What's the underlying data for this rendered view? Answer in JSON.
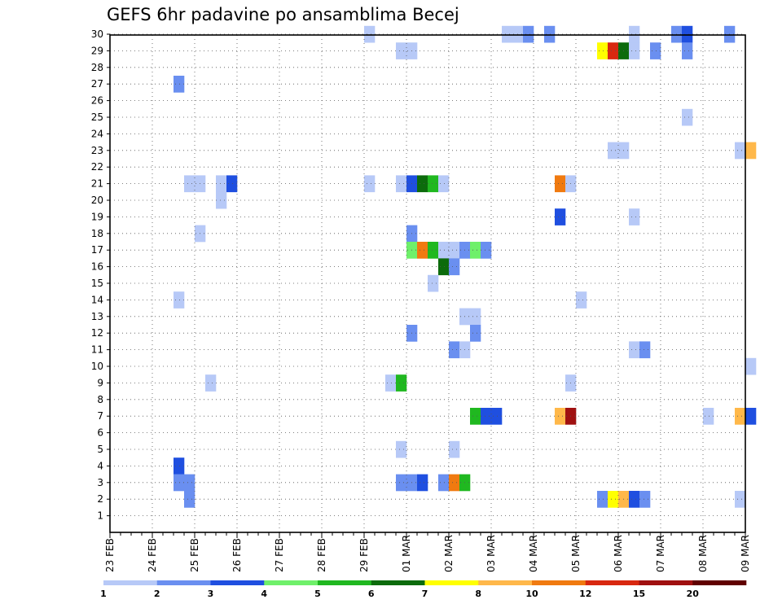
{
  "chart_data": {
    "type": "heatmap",
    "title": "GEFS 6hr padavine po ansamblima Becej",
    "xlabel": "",
    "ylabel": "",
    "members": [
      "1",
      "2",
      "3",
      "4",
      "5",
      "6",
      "7",
      "8",
      "9",
      "10",
      "11",
      "12",
      "13",
      "14",
      "15",
      "16",
      "17",
      "18",
      "19",
      "20",
      "21",
      "22",
      "23",
      "24",
      "25",
      "26",
      "27",
      "28",
      "29",
      "30"
    ],
    "x_tick_labels": [
      "23 FEB",
      "24 FEB",
      "25 FEB",
      "26 FEB",
      "27 FEB",
      "28 FEB",
      "29 FEB",
      "01 MAR",
      "02 MAR",
      "03 MAR",
      "04 MAR",
      "05 MAR",
      "06 MAR",
      "07 MAR",
      "08 MAR",
      "09 MAR"
    ],
    "grid": true,
    "colorbar": {
      "labels": [
        "1",
        "2",
        "3",
        "4",
        "5",
        "6",
        "7",
        "8",
        "10",
        "12",
        "15",
        "20"
      ],
      "colors": [
        "#b7c9f7",
        "#6a8ff0",
        "#1f4fe0",
        "#6ff06a",
        "#20b820",
        "#0c6b0c",
        "#ffff00",
        "#ffb84a",
        "#f07a10",
        "#d82810",
        "#a01010",
        "#600000"
      ]
    },
    "cells": [
      {
        "m": 30,
        "s": 24.5,
        "c": 0
      },
      {
        "m": 30,
        "s": 37.5,
        "c": 0
      },
      {
        "m": 30,
        "s": 38.5,
        "c": 0
      },
      {
        "m": 30,
        "s": 39.5,
        "c": 1
      },
      {
        "m": 30,
        "s": 41.5,
        "c": 1
      },
      {
        "m": 30,
        "s": 49.5,
        "c": 0
      },
      {
        "m": 30,
        "s": 53.5,
        "c": 1
      },
      {
        "m": 30,
        "s": 54.5,
        "c": 2
      },
      {
        "m": 30,
        "s": 58.5,
        "c": 1
      },
      {
        "m": 29,
        "s": 27.5,
        "c": 0
      },
      {
        "m": 29,
        "s": 28.5,
        "c": 0
      },
      {
        "m": 29,
        "s": 46.5,
        "c": 6
      },
      {
        "m": 29,
        "s": 47.5,
        "c": 9
      },
      {
        "m": 29,
        "s": 48.5,
        "c": 5
      },
      {
        "m": 29,
        "s": 49.5,
        "c": 0
      },
      {
        "m": 29,
        "s": 51.5,
        "c": 1
      },
      {
        "m": 29,
        "s": 54.5,
        "c": 1
      },
      {
        "m": 27,
        "s": 6.5,
        "c": 1
      },
      {
        "m": 25,
        "s": 54.5,
        "c": 0
      },
      {
        "m": 23,
        "s": 47.5,
        "c": 0
      },
      {
        "m": 23,
        "s": 48.5,
        "c": 0
      },
      {
        "m": 23,
        "s": 59.5,
        "c": 0
      },
      {
        "m": 23,
        "s": 60.5,
        "c": 7
      },
      {
        "m": 21,
        "s": 7.5,
        "c": 0
      },
      {
        "m": 21,
        "s": 8.5,
        "c": 0
      },
      {
        "m": 21,
        "s": 10.5,
        "c": 0
      },
      {
        "m": 21,
        "s": 11.5,
        "c": 2
      },
      {
        "m": 21,
        "s": 24.5,
        "c": 0
      },
      {
        "m": 21,
        "s": 27.5,
        "c": 0
      },
      {
        "m": 21,
        "s": 28.5,
        "c": 2
      },
      {
        "m": 21,
        "s": 29.5,
        "c": 5
      },
      {
        "m": 21,
        "s": 30.5,
        "c": 4
      },
      {
        "m": 21,
        "s": 31.5,
        "c": 0
      },
      {
        "m": 21,
        "s": 42.5,
        "c": 8
      },
      {
        "m": 21,
        "s": 43.5,
        "c": 0
      },
      {
        "m": 20,
        "s": 10.5,
        "c": 0
      },
      {
        "m": 19,
        "s": 42.5,
        "c": 2
      },
      {
        "m": 19,
        "s": 49.5,
        "c": 0
      },
      {
        "m": 18,
        "s": 8.5,
        "c": 0
      },
      {
        "m": 18,
        "s": 28.5,
        "c": 1
      },
      {
        "m": 17,
        "s": 28.5,
        "c": 3
      },
      {
        "m": 17,
        "s": 29.5,
        "c": 8
      },
      {
        "m": 17,
        "s": 30.5,
        "c": 4
      },
      {
        "m": 17,
        "s": 31.5,
        "c": 0
      },
      {
        "m": 17,
        "s": 32.5,
        "c": 0
      },
      {
        "m": 17,
        "s": 33.5,
        "c": 1
      },
      {
        "m": 17,
        "s": 34.5,
        "c": 3
      },
      {
        "m": 17,
        "s": 35.5,
        "c": 1
      },
      {
        "m": 16,
        "s": 31.5,
        "c": 5
      },
      {
        "m": 16,
        "s": 32.5,
        "c": 1
      },
      {
        "m": 15,
        "s": 30.5,
        "c": 0
      },
      {
        "m": 14,
        "s": 6.5,
        "c": 0
      },
      {
        "m": 14,
        "s": 44.5,
        "c": 0
      },
      {
        "m": 13,
        "s": 33.5,
        "c": 0
      },
      {
        "m": 13,
        "s": 34.5,
        "c": 0
      },
      {
        "m": 12,
        "s": 28.5,
        "c": 1
      },
      {
        "m": 12,
        "s": 34.5,
        "c": 1
      },
      {
        "m": 11,
        "s": 32.5,
        "c": 1
      },
      {
        "m": 11,
        "s": 33.5,
        "c": 0
      },
      {
        "m": 11,
        "s": 49.5,
        "c": 0
      },
      {
        "m": 11,
        "s": 50.5,
        "c": 1
      },
      {
        "m": 10,
        "s": 60.5,
        "c": 0
      },
      {
        "m": 9,
        "s": 9.5,
        "c": 0
      },
      {
        "m": 9,
        "s": 26.5,
        "c": 0
      },
      {
        "m": 9,
        "s": 27.5,
        "c": 4
      },
      {
        "m": 9,
        "s": 43.5,
        "c": 0
      },
      {
        "m": 7,
        "s": 34.5,
        "c": 4
      },
      {
        "m": 7,
        "s": 35.5,
        "c": 2
      },
      {
        "m": 7,
        "s": 36.5,
        "c": 2
      },
      {
        "m": 7,
        "s": 42.5,
        "c": 7
      },
      {
        "m": 7,
        "s": 43.5,
        "c": 10
      },
      {
        "m": 7,
        "s": 56.5,
        "c": 0
      },
      {
        "m": 7,
        "s": 59.5,
        "c": 7
      },
      {
        "m": 7,
        "s": 60.5,
        "c": 2
      },
      {
        "m": 5,
        "s": 27.5,
        "c": 0
      },
      {
        "m": 5,
        "s": 32.5,
        "c": 0
      },
      {
        "m": 4,
        "s": 6.5,
        "c": 2
      },
      {
        "m": 3,
        "s": 6.5,
        "c": 1
      },
      {
        "m": 3,
        "s": 7.5,
        "c": 1
      },
      {
        "m": 3,
        "s": 27.5,
        "c": 1
      },
      {
        "m": 3,
        "s": 28.5,
        "c": 1
      },
      {
        "m": 3,
        "s": 29.5,
        "c": 2
      },
      {
        "m": 3,
        "s": 31.5,
        "c": 1
      },
      {
        "m": 3,
        "s": 32.5,
        "c": 8
      },
      {
        "m": 3,
        "s": 33.5,
        "c": 4
      },
      {
        "m": 2,
        "s": 7.5,
        "c": 1
      },
      {
        "m": 2,
        "s": 46.5,
        "c": 1
      },
      {
        "m": 2,
        "s": 47.5,
        "c": 6
      },
      {
        "m": 2,
        "s": 48.5,
        "c": 7
      },
      {
        "m": 2,
        "s": 49.5,
        "c": 2
      },
      {
        "m": 2,
        "s": 50.5,
        "c": 1
      },
      {
        "m": 2,
        "s": 59.5,
        "c": 0
      }
    ]
  }
}
